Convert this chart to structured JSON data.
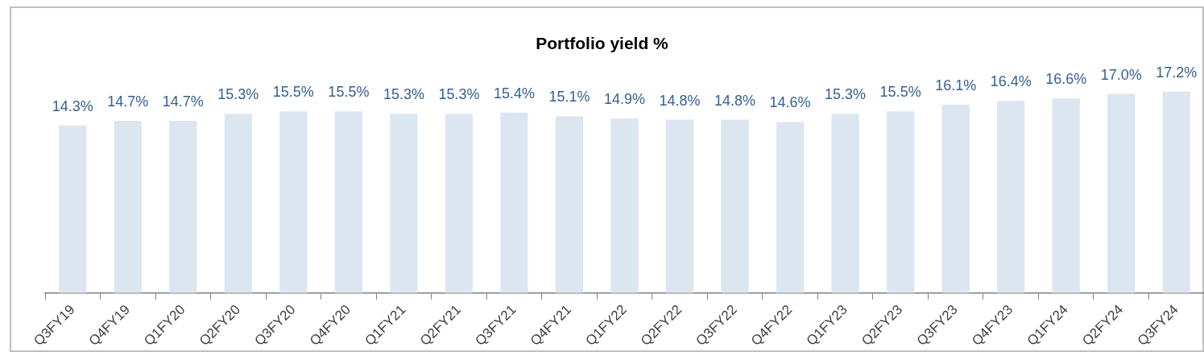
{
  "chart_data": {
    "type": "bar",
    "title": "Portfolio yield %",
    "categories": [
      "Q3FY19",
      "Q4FY19",
      "Q1FY20",
      "Q2FY20",
      "Q3FY20",
      "Q4FY20",
      "Q1FY21",
      "Q2FY21",
      "Q3FY21",
      "Q4FY21",
      "Q1FY22",
      "Q2FY22",
      "Q3FY22",
      "Q4FY22",
      "Q1FY23",
      "Q2FY23",
      "Q3FY23",
      "Q4FY23",
      "Q1FY24",
      "Q2FY24",
      "Q3FY24"
    ],
    "values": [
      14.3,
      14.7,
      14.7,
      15.3,
      15.5,
      15.5,
      15.3,
      15.3,
      15.4,
      15.1,
      14.9,
      14.8,
      14.8,
      14.6,
      15.3,
      15.5,
      16.1,
      16.4,
      16.6,
      17.0,
      17.2
    ],
    "value_labels": [
      "14.3%",
      "14.7%",
      "14.7%",
      "15.3%",
      "15.5%",
      "15.5%",
      "15.3%",
      "15.3%",
      "15.4%",
      "15.1%",
      "14.9%",
      "14.8%",
      "14.8%",
      "14.6%",
      "15.3%",
      "15.5%",
      "16.1%",
      "16.4%",
      "16.6%",
      "17.0%",
      "17.2%"
    ],
    "color": "#dce6f1",
    "relative": false,
    "grid": false,
    "legend": false
  }
}
